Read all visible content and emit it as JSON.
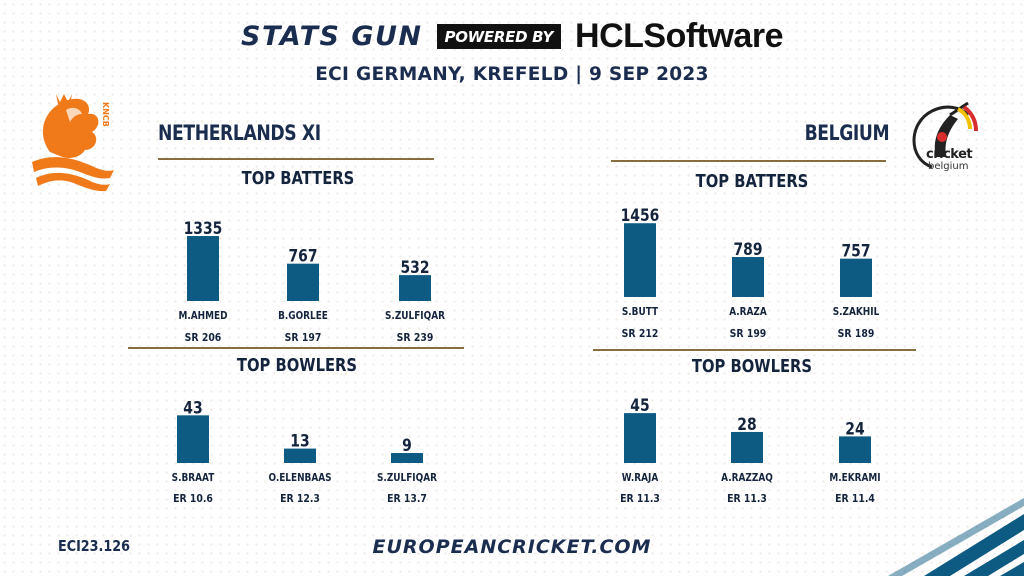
{
  "header": {
    "brand": "STATS GUN",
    "powered_by": "POWERED BY",
    "sponsor": "HCLSoftware",
    "venue_date": "ECI GERMANY, KREFELD | 9 SEP  2023"
  },
  "footer": {
    "code": "ECI23.126",
    "website": "EUROPEANCRICKET.COM"
  },
  "logos": {
    "left_badge_text": "KNCB",
    "right_logo_text_1": "cricket",
    "right_logo_text_2": "belgium"
  },
  "colors": {
    "bar": "#0d5b82",
    "rule": "#8a6f3e",
    "orange": "#f07a1a"
  },
  "teams": [
    {
      "name": "NETHERLANDS XI",
      "batters_title": "TOP BATTERS",
      "bowlers_title": "TOP BOWLERS"
    },
    {
      "name": "BELGIUM",
      "batters_title": "TOP BATTERS",
      "bowlers_title": "TOP BOWLERS"
    }
  ],
  "chart_data": [
    {
      "type": "bar",
      "title": "TOP BATTERS",
      "team": "NETHERLANDS XI",
      "categories": [
        "M.AHMED",
        "B.GORLEE",
        "S.ZULFIQAR"
      ],
      "values": [
        1335,
        767,
        532
      ],
      "sublabels": [
        "SR 206",
        "SR 197",
        "SR 239"
      ],
      "ylim": [
        0,
        1500
      ]
    },
    {
      "type": "bar",
      "title": "TOP BOWLERS",
      "team": "NETHERLANDS XI",
      "categories": [
        "S.BRAAT",
        "O.ELENBAAS",
        "S.ZULFIQAR"
      ],
      "values": [
        43,
        13,
        9
      ],
      "sublabels": [
        "ER 10.6",
        "ER 12.3",
        "ER 13.7"
      ],
      "ylim": [
        0,
        46
      ]
    },
    {
      "type": "bar",
      "title": "TOP BATTERS",
      "team": "BELGIUM",
      "categories": [
        "S.BUTT",
        "A.RAZA",
        "S.ZAKHIL"
      ],
      "values": [
        1456,
        789,
        757
      ],
      "sublabels": [
        "SR 212",
        "SR 199",
        "SR 189"
      ],
      "ylim": [
        0,
        1500
      ]
    },
    {
      "type": "bar",
      "title": "TOP BOWLERS",
      "team": "BELGIUM",
      "categories": [
        "W.RAJA",
        "A.RAZZAQ",
        "M.EKRAMI"
      ],
      "values": [
        45,
        28,
        24
      ],
      "sublabels": [
        "ER 11.3",
        "ER 11.3",
        "ER 11.4"
      ],
      "ylim": [
        0,
        46
      ]
    }
  ]
}
